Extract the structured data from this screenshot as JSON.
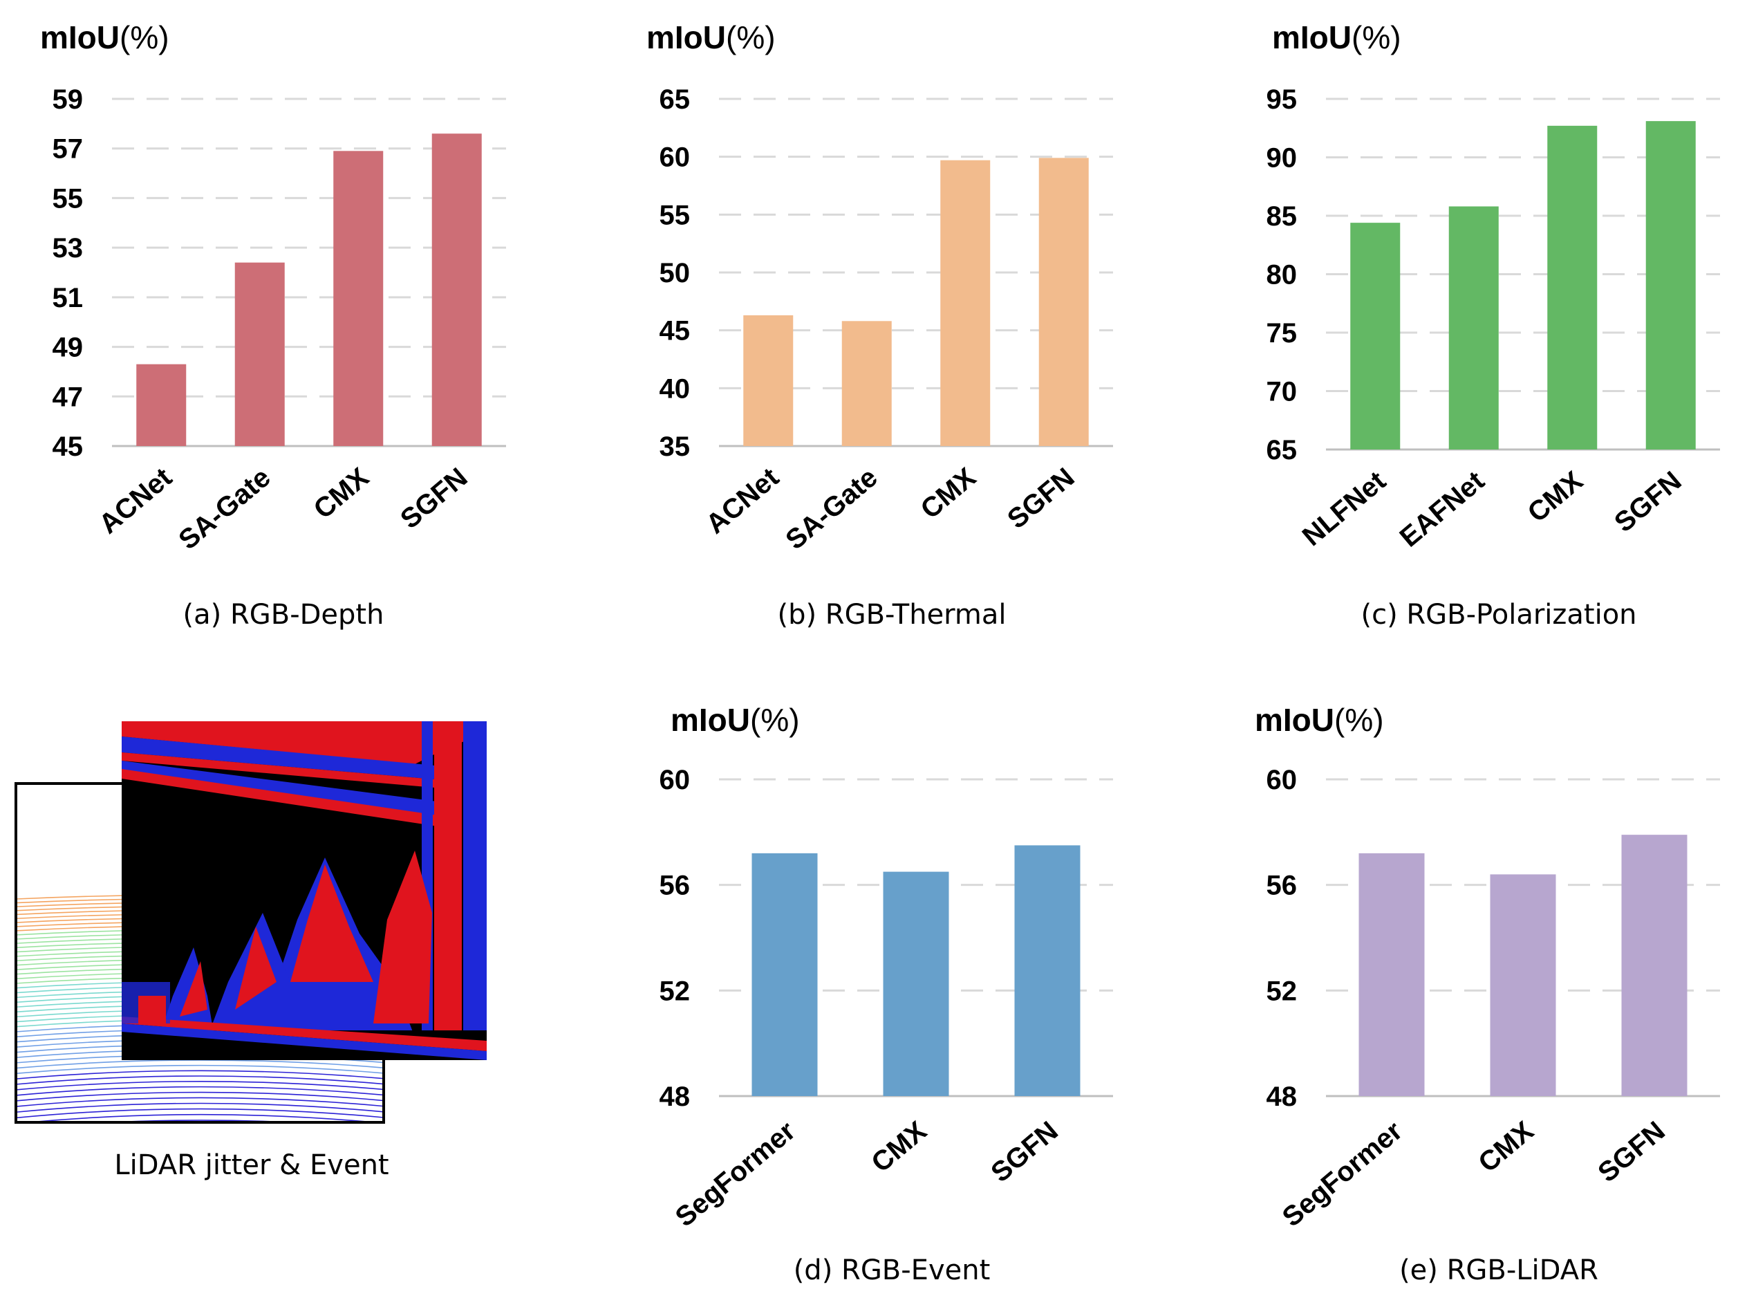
{
  "chart_data": [
    {
      "type": "bar",
      "ylabel": "mIoU",
      "ylabel_unit": "(%)",
      "categories": [
        "ACNet",
        "SA-Gate",
        "CMX",
        "SGFN"
      ],
      "values": [
        48.3,
        52.4,
        56.9,
        57.6
      ],
      "ylim": [
        45,
        59
      ],
      "yticks": [
        "45",
        "47",
        "49",
        "51",
        "53",
        "55",
        "57",
        "59"
      ],
      "grid": true,
      "color": "#cd6e76",
      "caption": "(a) RGB-Depth"
    },
    {
      "type": "bar",
      "ylabel": "mIoU",
      "ylabel_unit": "(%)",
      "categories": [
        "ACNet",
        "SA-Gate",
        "CMX",
        "SGFN"
      ],
      "values": [
        46.3,
        45.8,
        59.7,
        59.9
      ],
      "ylim": [
        35,
        65
      ],
      "yticks": [
        "35",
        "40",
        "45",
        "50",
        "55",
        "60",
        "65"
      ],
      "grid": true,
      "color": "#f2bb8d",
      "caption": "(b) RGB-Thermal"
    },
    {
      "type": "bar",
      "ylabel": "mIoU",
      "ylabel_unit": "(%)",
      "categories": [
        "NLFNet",
        "EAFNet",
        "CMX",
        "SGFN"
      ],
      "values": [
        84.4,
        85.8,
        92.7,
        93.1
      ],
      "ylim": [
        65,
        95
      ],
      "yticks": [
        "65",
        "70",
        "75",
        "80",
        "85",
        "90",
        "95"
      ],
      "grid": true,
      "color": "#63b864",
      "caption": "(c) RGB-Polarization"
    },
    {
      "type": "bar",
      "ylabel": "mIoU",
      "ylabel_unit": "(%)",
      "categories": [
        "SegFormer",
        "CMX",
        "SGFN"
      ],
      "values": [
        57.2,
        56.5,
        57.5
      ],
      "ylim": [
        48,
        60
      ],
      "yticks": [
        "48",
        "52",
        "56",
        "60"
      ],
      "grid": true,
      "color": "#67a0cb",
      "caption": "(d) RGB-Event"
    },
    {
      "type": "bar",
      "ylabel": "mIoU",
      "ylabel_unit": "(%)",
      "categories": [
        "SegFormer",
        "CMX",
        "SGFN"
      ],
      "values": [
        57.2,
        56.4,
        57.9
      ],
      "ylim": [
        48,
        60
      ],
      "yticks": [
        "48",
        "52",
        "56",
        "60"
      ],
      "grid": true,
      "color": "#b7a6cf",
      "caption": "(e) RGB-LiDAR"
    }
  ],
  "illustration": {
    "caption": "LiDAR jitter & Event"
  }
}
